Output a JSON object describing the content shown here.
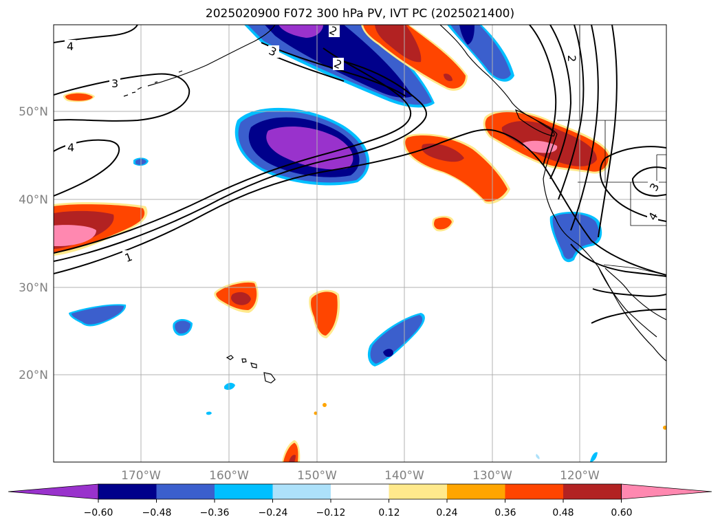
{
  "title": "2025020900 F072 300 hPa PV, IVT PC (2025021400)",
  "lat_labels": [
    "50°N",
    "40°N",
    "30°N",
    "20°N"
  ],
  "lon_labels": [
    "170°W",
    "160°W",
    "150°W",
    "140°W",
    "130°W",
    "120°W"
  ],
  "colorbar": {
    "tick_labels": [
      "−0.60",
      "−0.48",
      "−0.36",
      "−0.24",
      "−0.12",
      "0.12",
      "0.24",
      "0.36",
      "0.48",
      "0.60"
    ],
    "colors": [
      "#9932CC",
      "#00008B",
      "#3B5FCD",
      "#00BFFF",
      "#ADE1FA",
      "#FFFFFF",
      "#FFE98C",
      "#FFA500",
      "#FF4500",
      "#B22222",
      "#FF88B0"
    ]
  },
  "contour_labels": [
    "4",
    "3",
    "4",
    "2",
    "2",
    "1",
    "3",
    "4",
    "3",
    "2"
  ],
  "colors": {
    "neg_strong": "#9932CC",
    "neg_dark": "#00008B",
    "neg_mid": "#3B5FCD",
    "pos_mid": "#FF4500",
    "pos_dark": "#B22222",
    "pos_strong": "#FF88B0"
  }
}
